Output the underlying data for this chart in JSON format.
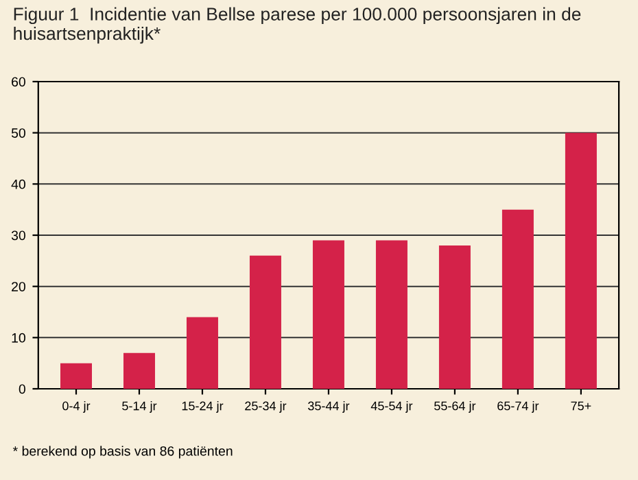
{
  "chart_data": {
    "type": "bar",
    "title": "Figuur 1  Incidentie van Bellse parese per 100.000 persoonsjaren in de huisartsenpraktijk*",
    "categories": [
      "0-4 jr",
      "5-14 jr",
      "15-24 jr",
      "25-34 jr",
      "35-44 jr",
      "45-54 jr",
      "55-64 jr",
      "65-74 jr",
      "75+"
    ],
    "values": [
      5,
      7,
      14,
      26,
      29,
      29,
      28,
      35,
      50
    ],
    "color": "#d42249",
    "ylim": [
      0,
      60
    ],
    "yticks": [
      0,
      10,
      20,
      30,
      40,
      50,
      60
    ],
    "grid": "y",
    "annotations": [
      "* berekend op basis van 86 patiënten"
    ]
  }
}
